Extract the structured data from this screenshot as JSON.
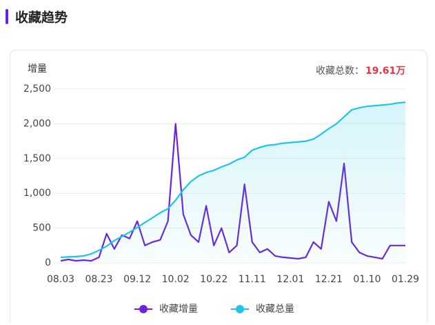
{
  "page_title": "收藏趋势",
  "chart_data": {
    "type": "line",
    "y_label": "增量",
    "total_label": "收藏总数：",
    "total_value": "19.61万",
    "categories": [
      "08.03",
      null,
      null,
      null,
      null,
      "08.23",
      null,
      null,
      null,
      null,
      "09.12",
      null,
      null,
      null,
      null,
      "10.02",
      null,
      null,
      null,
      null,
      "10.22",
      null,
      null,
      null,
      null,
      "11.11",
      null,
      null,
      null,
      null,
      "12.01",
      null,
      null,
      null,
      null,
      "12.21",
      null,
      null,
      null,
      null,
      "01.10",
      null,
      null,
      null,
      null,
      "01.29"
    ],
    "series": [
      {
        "name": "收藏增量",
        "color": "#6a22e0",
        "values": [
          30,
          50,
          30,
          40,
          30,
          80,
          420,
          200,
          400,
          350,
          600,
          250,
          300,
          330,
          600,
          2000,
          700,
          400,
          300,
          820,
          250,
          500,
          150,
          250,
          1130,
          300,
          150,
          200,
          100,
          80,
          70,
          60,
          80,
          300,
          200,
          880,
          600,
          1430,
          300,
          150,
          100,
          80,
          60,
          250,
          250,
          250
        ]
      },
      {
        "name": "收藏总量",
        "color": "#1cc4e8",
        "values": [
          80,
          85,
          90,
          100,
          130,
          180,
          240,
          320,
          380,
          440,
          510,
          580,
          650,
          720,
          780,
          900,
          1050,
          1170,
          1250,
          1300,
          1330,
          1380,
          1420,
          1480,
          1520,
          1620,
          1660,
          1690,
          1700,
          1720,
          1730,
          1740,
          1750,
          1780,
          1850,
          1930,
          2000,
          2100,
          2200,
          2230,
          2250,
          2260,
          2270,
          2280,
          2300,
          2310
        ]
      }
    ],
    "ylim": [
      0,
      2500
    ],
    "yticks": [
      0,
      500,
      {
        "value": 1000,
        "label": "1,000"
      },
      {
        "value": 1500,
        "label": "1,500"
      },
      {
        "value": 2000,
        "label": "2,000"
      },
      {
        "value": 2500,
        "label": "2,500"
      }
    ],
    "grid": true
  }
}
